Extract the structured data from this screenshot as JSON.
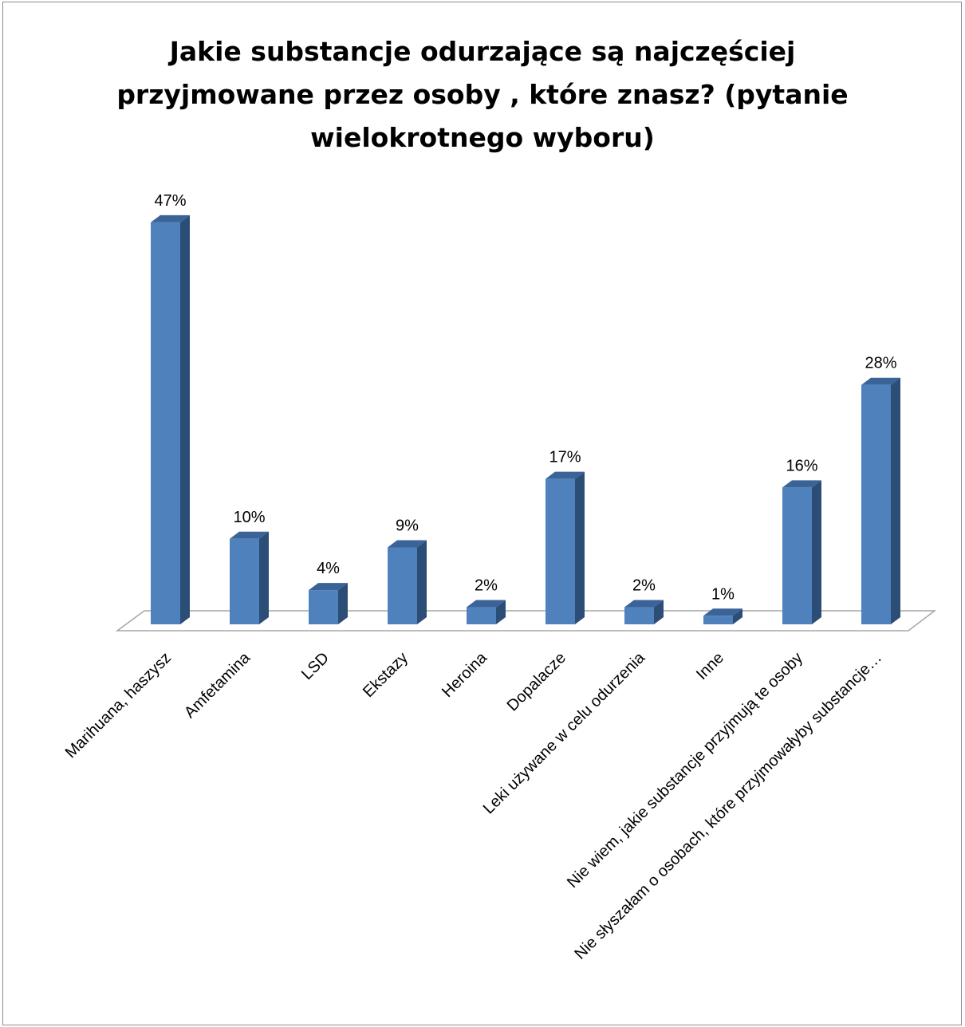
{
  "chart_data": {
    "type": "bar",
    "title": "Jakie substancje odurzające są najczęściej przyjmowane przez osoby , które znasz? (pytanie wielokrotnego wyboru)",
    "categories": [
      "Marihuana, haszysz",
      "Amfetamina",
      "LSD",
      "Ekstazy",
      "Heroina",
      "Dopalacze",
      "Leki używane w celu odurzenia",
      "Inne",
      "Nie wiem, jakie substancje przyjmują te osoby",
      "Nie słyszałam o osobach, które przyjmowałyby substancje…"
    ],
    "values": [
      47,
      10,
      4,
      9,
      2,
      17,
      2,
      1,
      16,
      28
    ],
    "data_labels": [
      "47%",
      "10%",
      "4%",
      "9%",
      "2%",
      "17%",
      "2%",
      "1%",
      "16%",
      "28%"
    ],
    "value_unit": "%",
    "ylim": [
      0,
      47
    ],
    "grid": false,
    "legend": "none",
    "style": "3d-column",
    "colors": {
      "front": "#4f81bd",
      "side": "#2c4d75",
      "top": "#3a6398",
      "floor": "#a6a6a6"
    }
  }
}
